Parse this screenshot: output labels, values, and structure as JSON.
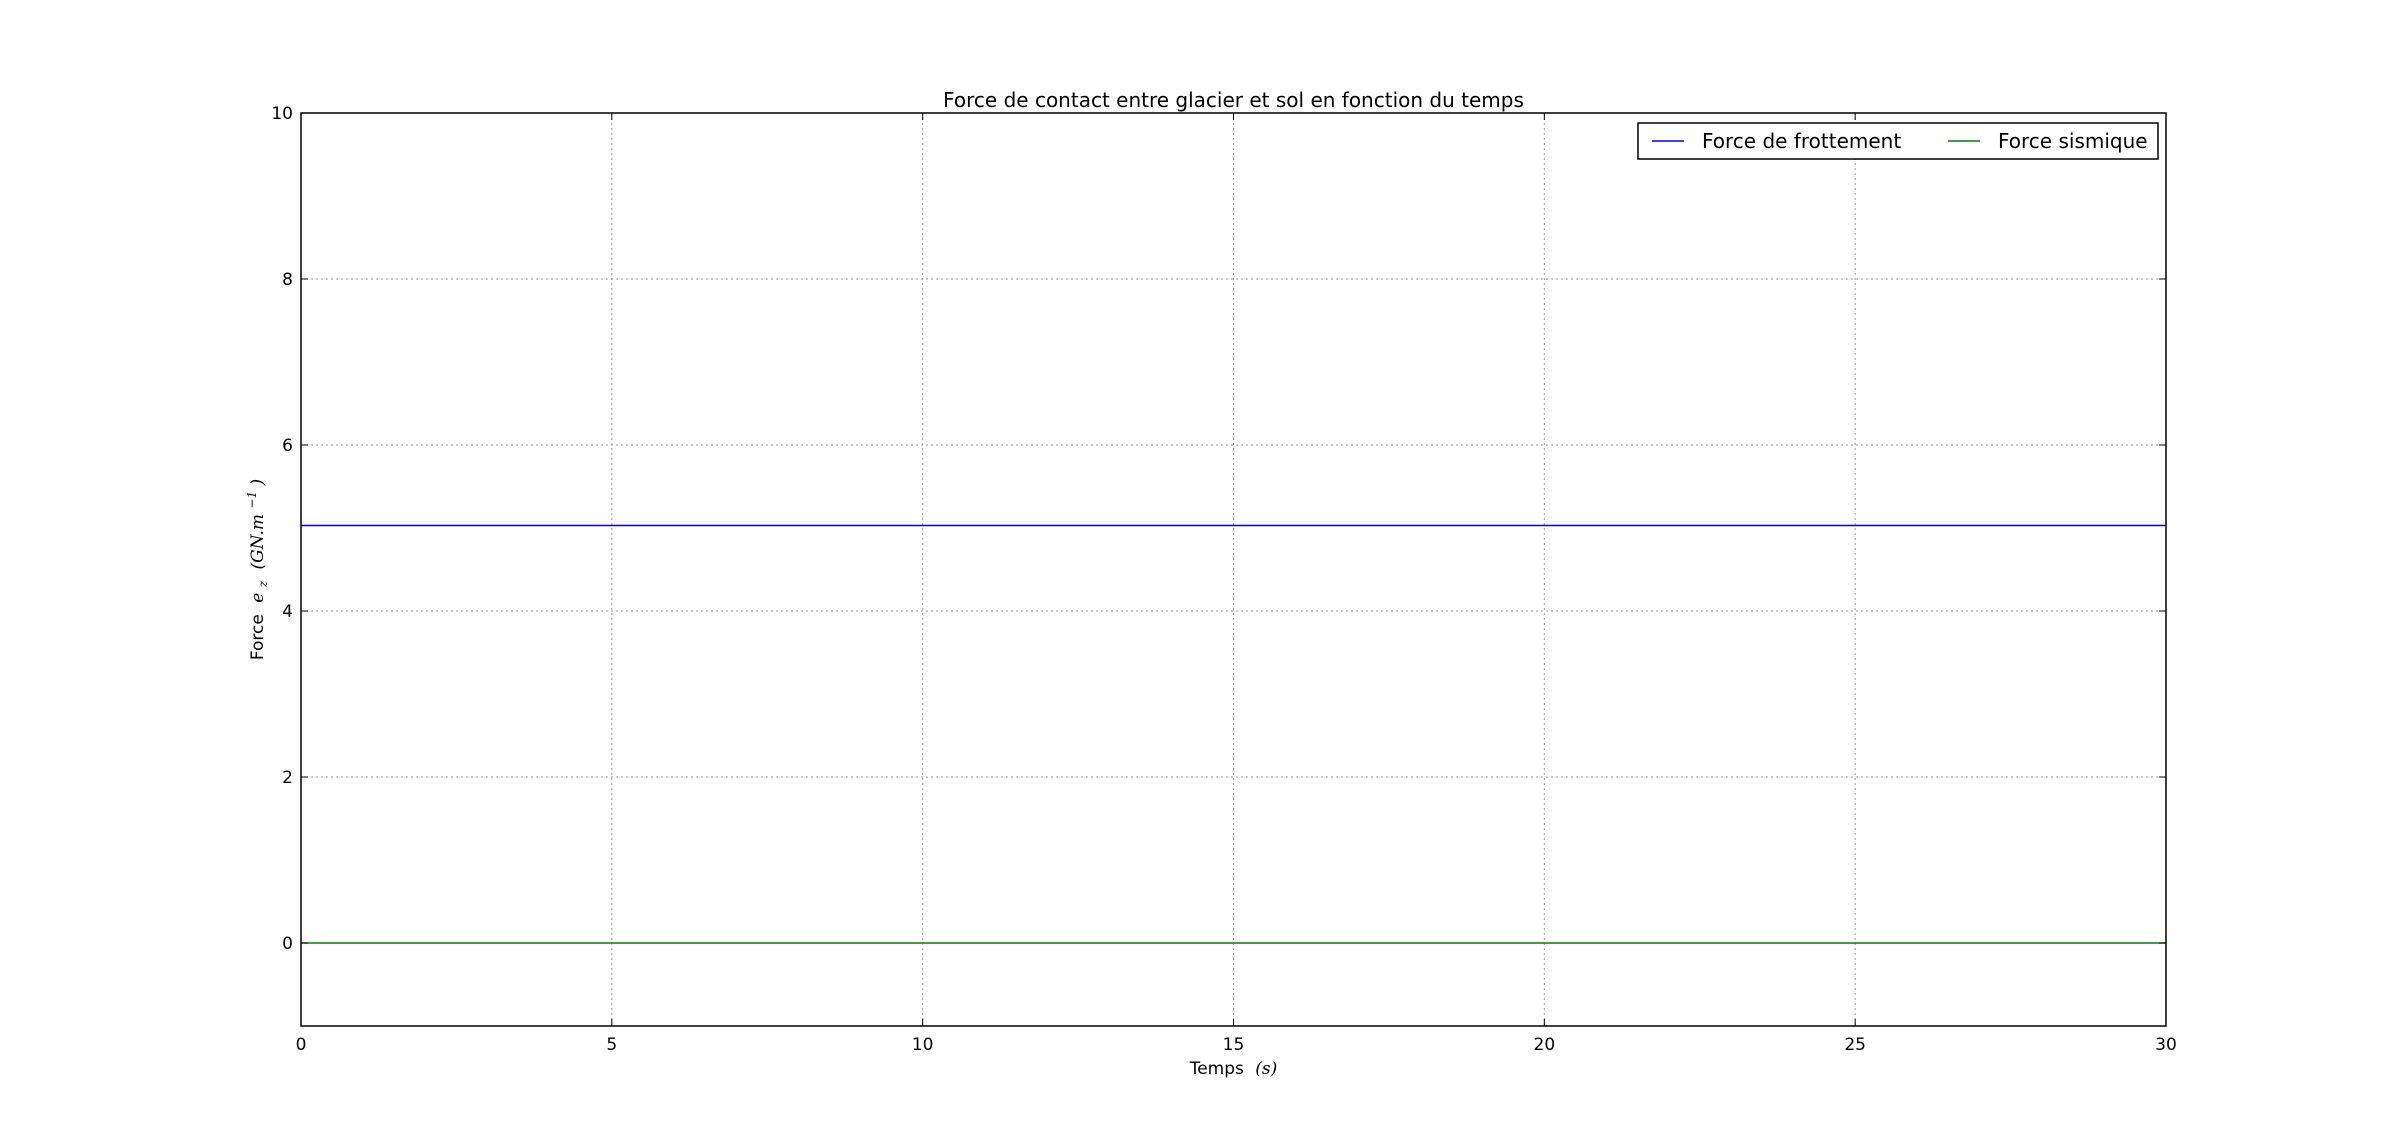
{
  "chart_data": {
    "type": "line",
    "title": "Force de contact entre glacier et sol en fonction du temps",
    "xlabel": "Temps",
    "xlabel_math": "(s)",
    "ylabel": "Force",
    "ylabel_math_base": "e",
    "ylabel_math_sub": "z",
    "ylabel_math_unit": "(GN.m",
    "ylabel_math_exp": "−1",
    "ylabel_math_close": ")",
    "xlim": [
      0,
      30
    ],
    "ylim": [
      -1,
      10
    ],
    "x_ticks": [
      0,
      5,
      10,
      15,
      20,
      25,
      30
    ],
    "y_ticks": [
      0,
      2,
      4,
      6,
      8,
      10
    ],
    "grid": true,
    "legend_placement": "top-right",
    "series": [
      {
        "name": "Force de frottement",
        "color": "#0000ff",
        "x": [
          0,
          30
        ],
        "y": [
          5.03,
          5.03
        ]
      },
      {
        "name": "Force sismique",
        "color": "#008000",
        "x": [
          0,
          30
        ],
        "y": [
          0,
          0
        ]
      }
    ]
  }
}
